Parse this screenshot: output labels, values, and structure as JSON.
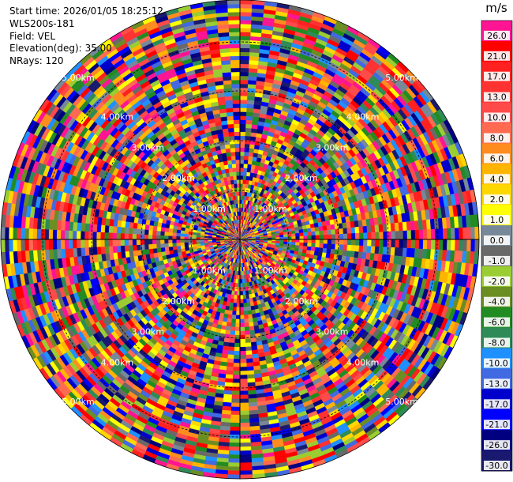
{
  "info": {
    "start_time": "Start time: 2026/01/05 18:25:12",
    "instrument": "WLS200s-181",
    "field": "Field: VEL",
    "elevation": "Elevation(deg): 35.00",
    "nrays": "NRays: 120"
  },
  "chart_data": {
    "type": "heatmap",
    "projection": "polar-ppi",
    "field": "VEL",
    "units": "m/s",
    "nrays": 120,
    "elevation_deg": 35.0,
    "range_ring_labels": [
      "1.00km",
      "2.00km",
      "3.00km",
      "4.00km",
      "5.00km"
    ],
    "colorbar": {
      "title": "m/s",
      "ticks": [
        "26.0",
        "21.0",
        "17.0",
        "13.0",
        "10.0",
        "8.0",
        "6.0",
        "4.0",
        "2.0",
        "1.0",
        "0.0",
        "-1.0",
        "-2.0",
        "-4.0",
        "-6.0",
        "-8.0",
        "-10.0",
        "-13.0",
        "-17.0",
        "-21.0",
        "-26.0",
        "-30.0"
      ],
      "colors": [
        "#ff1493",
        "#ff0000",
        "#ff2020",
        "#ff3232",
        "#ff4a4a",
        "#ff6a50",
        "#ff8c1e",
        "#ffb400",
        "#ffd700",
        "#ffff00",
        "#778899",
        "#696969",
        "#9acd32",
        "#6b8e23",
        "#228b22",
        "#2e8b57",
        "#1e90ff",
        "#4169e1",
        "#0000cd",
        "#0000ff",
        "#000080",
        "#191970"
      ]
    }
  }
}
